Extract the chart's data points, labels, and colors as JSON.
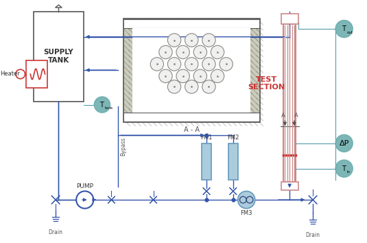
{
  "bg_color": "#ffffff",
  "blue": "#3355aa",
  "teal": "#5599aa",
  "red": "#cc3333",
  "sensor_color": "#66aaaa",
  "gray": "#555555",
  "labels": {
    "supply_tank": "SUPPLY\nTANK",
    "heater": "Heater",
    "t_tank": "T",
    "t_tank_sub": "tank",
    "t_out": "T",
    "t_out_sub": "out",
    "t_in": "T",
    "t_in_sub": "in",
    "delta_p": "ΔP",
    "pump": "PUMP",
    "bypass": "Bypass",
    "fm1": "FM1",
    "fm2": "FM2",
    "fm3": "FM3",
    "test_section": "TEST\nSECTION",
    "a_a": "A - A",
    "drain1": "Drain",
    "drain2": "Drain",
    "a_left": "A",
    "a_right": "A"
  }
}
